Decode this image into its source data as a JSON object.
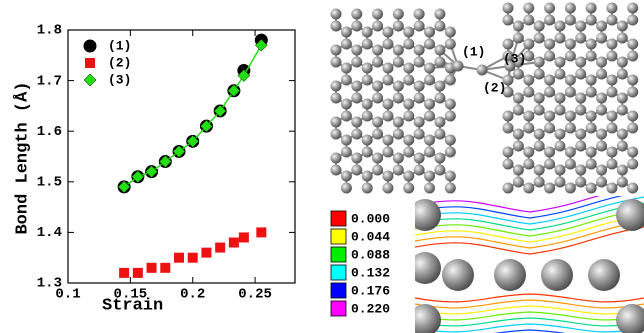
{
  "chart_data": {
    "type": "scatter",
    "xlabel": "Strain",
    "ylabel": "Bond Length (Å)",
    "x": [
      0.145,
      0.156,
      0.167,
      0.178,
      0.189,
      0.2,
      0.211,
      0.222,
      0.233,
      0.241,
      0.255
    ],
    "series": [
      {
        "name": "(1)",
        "color": "#000000",
        "marker": "circle",
        "values": [
          1.49,
          1.51,
          1.52,
          1.54,
          1.56,
          1.58,
          1.61,
          1.64,
          1.68,
          1.72,
          1.78
        ]
      },
      {
        "name": "(2)",
        "color": "#ee1111",
        "marker": "square",
        "values": [
          1.32,
          1.32,
          1.33,
          1.33,
          1.35,
          1.35,
          1.36,
          1.37,
          1.38,
          1.39,
          1.4
        ]
      },
      {
        "name": "(3)",
        "color": "#22dd11",
        "marker": "diamond",
        "line": true,
        "values": [
          1.49,
          1.51,
          1.52,
          1.54,
          1.56,
          1.58,
          1.61,
          1.64,
          1.68,
          1.71,
          1.77
        ]
      }
    ],
    "xlim": [
      0.1,
      0.282
    ],
    "xticks": [
      0.1,
      0.15,
      0.2,
      0.25
    ],
    "ylim": [
      1.3,
      1.8
    ],
    "yticks": [
      1.3,
      1.4,
      1.5,
      1.6,
      1.7,
      1.8
    ],
    "legend": "upper left"
  },
  "structure_labels": [
    "(1)",
    "(2)",
    "(3)"
  ],
  "colorbar": [
    {
      "label": "0.000",
      "color": "#ff0000"
    },
    {
      "label": "0.044",
      "color": "#ffff00"
    },
    {
      "label": "0.088",
      "color": "#00ee00"
    },
    {
      "label": "0.132",
      "color": "#00ffff"
    },
    {
      "label": "0.176",
      "color": "#0000ff"
    },
    {
      "label": "0.220",
      "color": "#ff00ff"
    }
  ]
}
